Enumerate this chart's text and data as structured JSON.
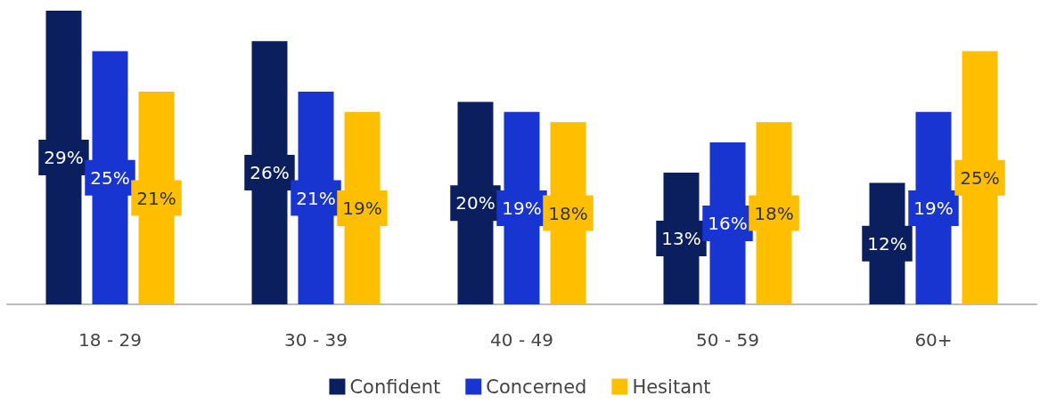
{
  "chart_data": {
    "type": "bar",
    "categories": [
      "18 - 29",
      "30 - 39",
      "40 - 49",
      "50 - 59",
      "60+"
    ],
    "series": [
      {
        "name": "Confident",
        "color": "#0b1f5e",
        "values": [
          29,
          26,
          20,
          13,
          12
        ],
        "value_labels": [
          "29%",
          "26%",
          "20%",
          "13%",
          "12%"
        ]
      },
      {
        "name": "Concerned",
        "color": "#1835d2",
        "values": [
          25,
          21,
          19,
          16,
          19
        ],
        "value_labels": [
          "25%",
          "21%",
          "19%",
          "16%",
          "19%"
        ]
      },
      {
        "name": "Hesitant",
        "color": "#ffbf00",
        "values": [
          21,
          19,
          18,
          18,
          25
        ],
        "value_labels": [
          "21%",
          "19%",
          "18%",
          "18%",
          "25%"
        ]
      }
    ],
    "legend": "bottom"
  }
}
